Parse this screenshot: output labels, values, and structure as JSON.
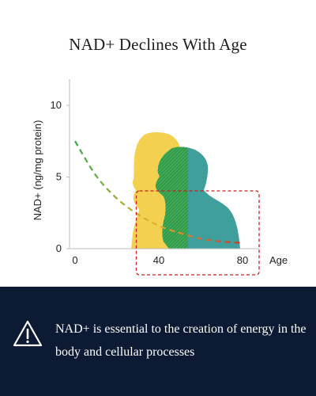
{
  "chart_data": {
    "type": "line",
    "title": "NAD+ Declines With Age",
    "xlabel": "Age",
    "ylabel": "NAD+ (ng/mg protein)",
    "x_ticks": [
      0,
      40,
      80
    ],
    "y_ticks": [
      0,
      5,
      10
    ],
    "xlim": [
      0,
      88
    ],
    "ylim": [
      0,
      12
    ],
    "series": [
      {
        "x": [
          0,
          10,
          20,
          30,
          40,
          50,
          60,
          70,
          80
        ],
        "y": [
          7.5,
          5.1,
          3.5,
          2.4,
          1.6,
          1.1,
          0.7,
          0.5,
          0.4
        ]
      }
    ],
    "line_style": "dashed",
    "line_gradient": [
      "#3aa64a",
      "#d9b82a",
      "#d2322c"
    ],
    "highlight_box_x_range": [
      30,
      88
    ],
    "highlight_box_color": "#c8201e",
    "figure_colors": {
      "young": "#f3d04f",
      "old": "#3e9f9c",
      "overlap": "#2f9e4e"
    },
    "grid": false
  },
  "footer": {
    "icon": "warning-triangle-icon",
    "text": "NAD+ is essential to the creation of energy in the body and cellular processes",
    "background": "#0d1a33"
  }
}
